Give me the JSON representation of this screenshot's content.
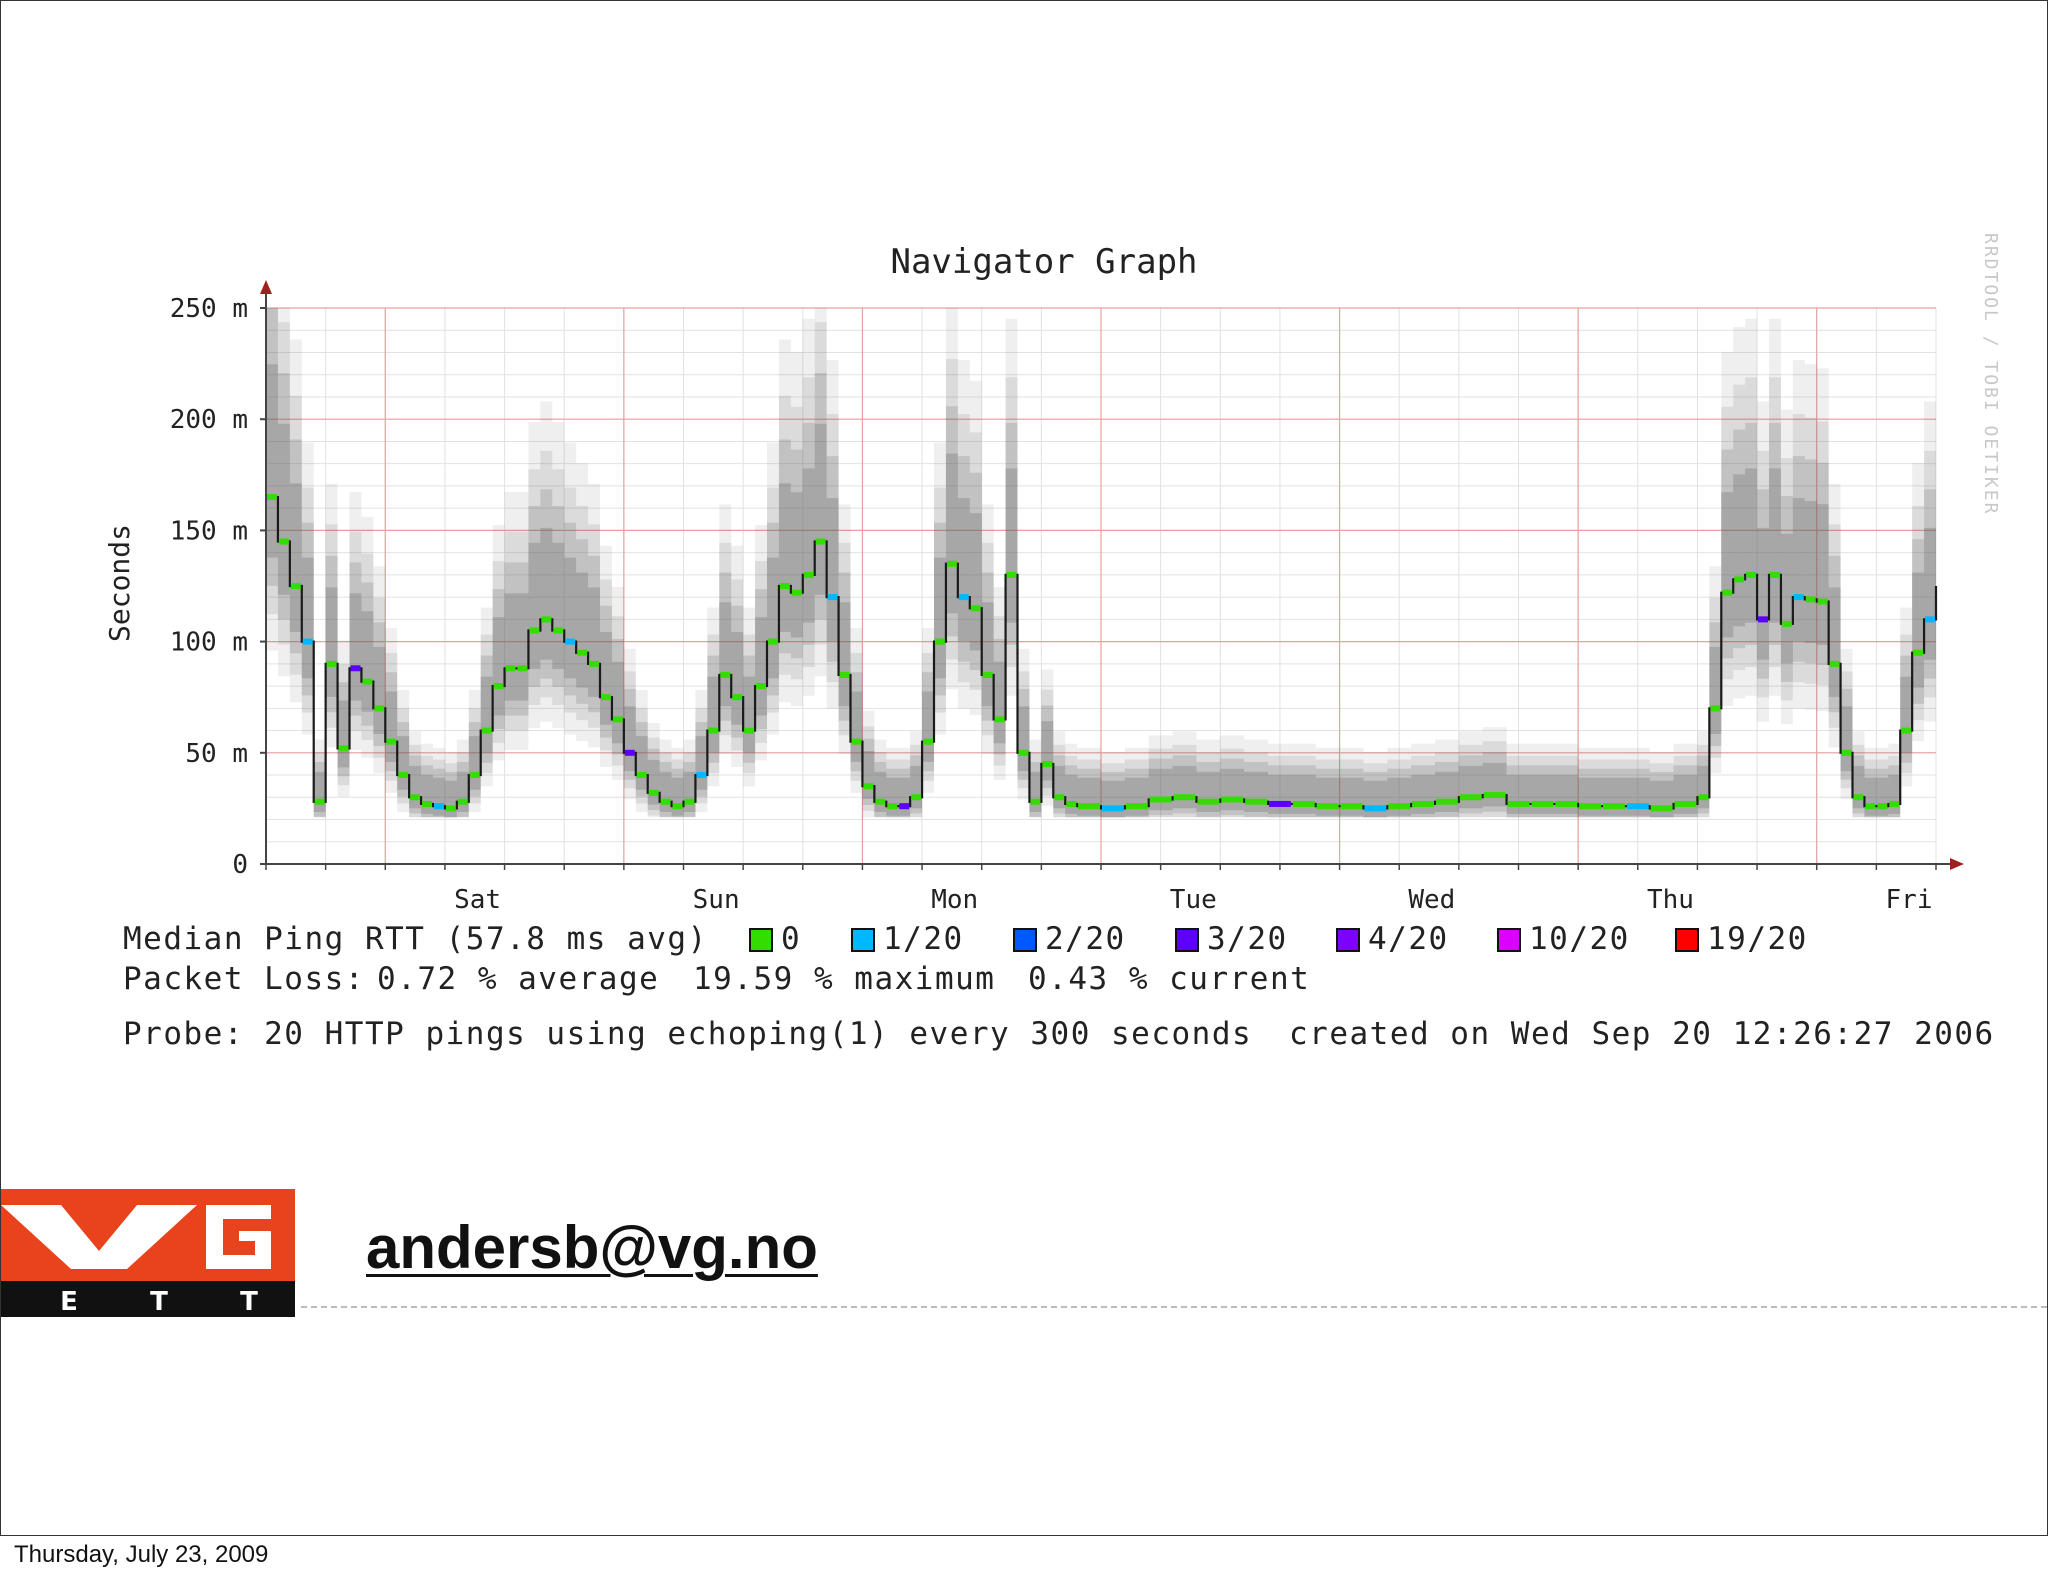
{
  "slide": {
    "email": "andersb@vg.no",
    "footer_date": "Thursday, July 23, 2009",
    "logo": {
      "letters": "VG",
      "subletters": [
        "E",
        "T",
        "T"
      ],
      "colors": {
        "orange": "#e8431c",
        "black": "#111111",
        "white": "#ffffff"
      }
    }
  },
  "chart_data": {
    "type": "line",
    "title": "Navigator Graph",
    "ylabel": "Seconds",
    "xlabel": "",
    "watermark": "RRDTOOL / TOBI OETIKER",
    "ylim": [
      0,
      0.25
    ],
    "y_ticks": [
      {
        "value": 0,
        "label": "0"
      },
      {
        "value": 0.05,
        "label": "50 m"
      },
      {
        "value": 0.1,
        "label": "100 m"
      },
      {
        "value": 0.15,
        "label": "150 m"
      },
      {
        "value": 0.2,
        "label": "200 m"
      },
      {
        "value": 0.25,
        "label": "250 m"
      }
    ],
    "xlim": [
      0,
      7
    ],
    "x_ticks": [
      {
        "value": 1,
        "label": "Sat"
      },
      {
        "value": 2,
        "label": "Sun"
      },
      {
        "value": 3,
        "label": "Mon"
      },
      {
        "value": 4,
        "label": "Tue"
      },
      {
        "value": 5,
        "label": "Wed"
      },
      {
        "value": 6,
        "label": "Thu"
      },
      {
        "value": 7,
        "label": "Fri"
      }
    ],
    "grid": true,
    "colors": {
      "grid_major": "#e8a0a0",
      "grid_minor": "#e2e2e2",
      "median_line": "#1a1a1a",
      "smoke": "#606060",
      "axis": "#444444",
      "arrow": "#a02020"
    },
    "series": [
      {
        "name": "Median Ping RTT",
        "x": [
          0,
          0.05,
          0.1,
          0.15,
          0.2,
          0.25,
          0.3,
          0.35,
          0.4,
          0.45,
          0.5,
          0.55,
          0.6,
          0.65,
          0.7,
          0.75,
          0.8,
          0.85,
          0.9,
          0.95,
          1.0,
          1.05,
          1.1,
          1.15,
          1.2,
          1.25,
          1.3,
          1.35,
          1.4,
          1.45,
          1.5,
          1.55,
          1.6,
          1.65,
          1.7,
          1.75,
          1.8,
          1.85,
          1.9,
          1.95,
          2.0,
          2.05,
          2.1,
          2.15,
          2.2,
          2.25,
          2.3,
          2.35,
          2.4,
          2.45,
          2.5,
          2.55,
          2.6,
          2.65,
          2.7,
          2.75,
          2.8,
          2.85,
          2.9,
          2.95,
          3.0,
          3.05,
          3.1,
          3.15,
          3.2,
          3.25,
          3.3,
          3.35,
          3.4,
          3.5,
          3.6,
          3.7,
          3.8,
          3.9,
          4.0,
          4.1,
          4.2,
          4.3,
          4.4,
          4.5,
          4.6,
          4.7,
          4.8,
          4.9,
          5.0,
          5.1,
          5.2,
          5.3,
          5.4,
          5.5,
          5.6,
          5.7,
          5.8,
          5.9,
          6.0,
          6.05,
          6.1,
          6.15,
          6.2,
          6.25,
          6.3,
          6.35,
          6.4,
          6.45,
          6.5,
          6.55,
          6.6,
          6.65,
          6.7,
          6.75,
          6.8,
          6.85,
          6.9,
          6.95,
          7.0
        ],
        "values": [
          0.165,
          0.145,
          0.125,
          0.1,
          0.028,
          0.09,
          0.052,
          0.088,
          0.082,
          0.07,
          0.055,
          0.04,
          0.03,
          0.027,
          0.026,
          0.025,
          0.028,
          0.04,
          0.06,
          0.08,
          0.088,
          0.088,
          0.105,
          0.11,
          0.105,
          0.1,
          0.095,
          0.09,
          0.075,
          0.065,
          0.05,
          0.04,
          0.032,
          0.028,
          0.026,
          0.028,
          0.04,
          0.06,
          0.085,
          0.075,
          0.06,
          0.08,
          0.1,
          0.125,
          0.122,
          0.13,
          0.145,
          0.12,
          0.085,
          0.055,
          0.035,
          0.028,
          0.026,
          0.026,
          0.03,
          0.055,
          0.1,
          0.135,
          0.12,
          0.115,
          0.085,
          0.065,
          0.13,
          0.05,
          0.028,
          0.045,
          0.03,
          0.027,
          0.026,
          0.025,
          0.026,
          0.029,
          0.03,
          0.028,
          0.029,
          0.028,
          0.027,
          0.027,
          0.026,
          0.026,
          0.025,
          0.026,
          0.027,
          0.028,
          0.03,
          0.031,
          0.027,
          0.027,
          0.027,
          0.026,
          0.026,
          0.026,
          0.025,
          0.027,
          0.03,
          0.07,
          0.122,
          0.128,
          0.13,
          0.11,
          0.13,
          0.108,
          0.12,
          0.119,
          0.118,
          0.09,
          0.05,
          0.03,
          0.026,
          0.026,
          0.027,
          0.06,
          0.095,
          0.11,
          0.125
        ]
      }
    ],
    "legend": {
      "series_label": "Median Ping RTT (57.8 ms avg)",
      "loss_levels": [
        {
          "label": "0",
          "color": "#33dd00"
        },
        {
          "label": "1/20",
          "color": "#00b8ff"
        },
        {
          "label": "2/20",
          "color": "#0059ff"
        },
        {
          "label": "3/20",
          "color": "#5e00ff"
        },
        {
          "label": "4/20",
          "color": "#7e00ff"
        },
        {
          "label": "10/20",
          "color": "#dd00ff"
        },
        {
          "label": "19/20",
          "color": "#ff0000"
        }
      ],
      "packet_loss": {
        "prefix": "Packet Loss:",
        "average": "0.72 % average",
        "maximum": "19.59 % maximum",
        "current": "0.43 % current"
      },
      "probe": "Probe: 20 HTTP pings using echoping(1) every 300 seconds",
      "created": "created on Wed Sep 20 12:26:27 2006"
    }
  }
}
